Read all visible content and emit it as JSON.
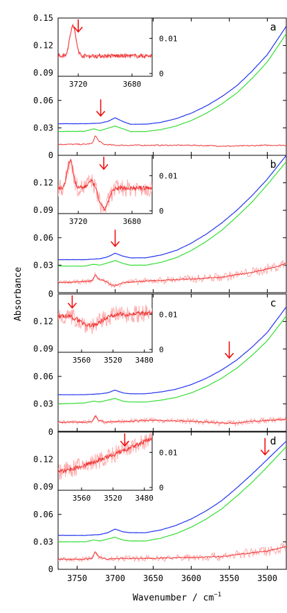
{
  "chart_data": {
    "type": "line",
    "xlabel": "Wavenumber / cm",
    "xlabel_sup": "−1",
    "ylabel": "Absorbance",
    "xlim": [
      3775,
      3475
    ],
    "ylim": [
      0,
      0.15
    ],
    "x_ticks": [
      "3750",
      "3700",
      "3650",
      "3600",
      "3550",
      "3500"
    ],
    "y_ticks": [
      "0",
      "0.03",
      "0.06",
      "0.09",
      "0.12",
      "0.15"
    ],
    "colors": {
      "blue": "#2233ee",
      "green": "#33dd33",
      "diff": "#ee3333",
      "diff_light": "#ffaaaa",
      "arrow": "#ee1111"
    },
    "panels": [
      {
        "label": "a",
        "y_tick_top": "0.15",
        "arrow_x": 3719,
        "inset": {
          "x_ticks": [
            "3720",
            "3680"
          ],
          "y_ticks": [
            "0",
            "0.01"
          ],
          "xlim": [
            3735,
            3665
          ],
          "arrow_x": 3720,
          "shape": "a"
        },
        "series": [
          {
            "color": "blue",
            "values": [
              [
                3775,
                0.0345
              ],
              [
                3740,
                0.0345
              ],
              [
                3720,
                0.0352
              ],
              [
                3710,
                0.037
              ],
              [
                3700,
                0.041
              ],
              [
                3690,
                0.037
              ],
              [
                3680,
                0.034
              ],
              [
                3660,
                0.034
              ],
              [
                3640,
                0.036
              ],
              [
                3620,
                0.04
              ],
              [
                3600,
                0.046
              ],
              [
                3580,
                0.054
              ],
              [
                3560,
                0.064
              ],
              [
                3540,
                0.076
              ],
              [
                3520,
                0.092
              ],
              [
                3500,
                0.11
              ],
              [
                3475,
                0.141
              ]
            ]
          },
          {
            "color": "green",
            "values": [
              [
                3775,
                0.026
              ],
              [
                3740,
                0.0262
              ],
              [
                3728,
                0.029
              ],
              [
                3720,
                0.027
              ],
              [
                3700,
                0.032
              ],
              [
                3690,
                0.029
              ],
              [
                3680,
                0.026
              ],
              [
                3660,
                0.026
              ],
              [
                3640,
                0.028
              ],
              [
                3620,
                0.032
              ],
              [
                3600,
                0.038
              ],
              [
                3580,
                0.046
              ],
              [
                3560,
                0.056
              ],
              [
                3540,
                0.068
              ],
              [
                3520,
                0.084
              ],
              [
                3500,
                0.102
              ],
              [
                3475,
                0.133
              ]
            ]
          },
          {
            "color": "diff",
            "values": [
              [
                3775,
                0.012
              ],
              [
                3740,
                0.012
              ],
              [
                3730,
                0.013
              ],
              [
                3726,
                0.022
              ],
              [
                3722,
                0.016
              ],
              [
                3715,
                0.012
              ],
              [
                3700,
                0.011
              ],
              [
                3650,
                0.011
              ],
              [
                3600,
                0.011
              ],
              [
                3550,
                0.01
              ],
              [
                3500,
                0.011
              ],
              [
                3475,
                0.011
              ]
            ]
          }
        ]
      },
      {
        "label": "b",
        "y_tick_top": "0",
        "arrow_x": 3700,
        "inset": {
          "x_ticks": [
            "3720",
            "3680"
          ],
          "y_ticks": [
            "0",
            "0.01"
          ],
          "xlim": [
            3735,
            3665
          ],
          "arrow_x": 3701,
          "shape": "b"
        },
        "series": [
          {
            "color": "blue",
            "values": [
              [
                3775,
                0.036
              ],
              [
                3740,
                0.036
              ],
              [
                3720,
                0.037
              ],
              [
                3710,
                0.039
              ],
              [
                3700,
                0.043
              ],
              [
                3690,
                0.04
              ],
              [
                3680,
                0.038
              ],
              [
                3660,
                0.038
              ],
              [
                3640,
                0.041
              ],
              [
                3620,
                0.046
              ],
              [
                3600,
                0.054
              ],
              [
                3580,
                0.064
              ],
              [
                3560,
                0.076
              ],
              [
                3540,
                0.09
              ],
              [
                3520,
                0.106
              ],
              [
                3500,
                0.124
              ],
              [
                3475,
                0.15
              ]
            ]
          },
          {
            "color": "green",
            "values": [
              [
                3775,
                0.029
              ],
              [
                3740,
                0.029
              ],
              [
                3728,
                0.031
              ],
              [
                3720,
                0.03
              ],
              [
                3700,
                0.035
              ],
              [
                3690,
                0.032
              ],
              [
                3680,
                0.03
              ],
              [
                3660,
                0.03
              ],
              [
                3640,
                0.033
              ],
              [
                3620,
                0.038
              ],
              [
                3600,
                0.046
              ],
              [
                3580,
                0.056
              ],
              [
                3560,
                0.068
              ],
              [
                3540,
                0.083
              ],
              [
                3520,
                0.099
              ],
              [
                3500,
                0.118
              ],
              [
                3475,
                0.143
              ]
            ]
          },
          {
            "color": "diff",
            "values": [
              [
                3775,
                0.011
              ],
              [
                3740,
                0.012
              ],
              [
                3730,
                0.013
              ],
              [
                3726,
                0.02
              ],
              [
                3722,
                0.015
              ],
              [
                3712,
                0.012
              ],
              [
                3701,
                0.007
              ],
              [
                3690,
                0.011
              ],
              [
                3650,
                0.013
              ],
              [
                3600,
                0.015
              ],
              [
                3560,
                0.017
              ],
              [
                3520,
                0.022
              ],
              [
                3490,
                0.028
              ],
              [
                3475,
                0.032
              ]
            ]
          }
        ]
      },
      {
        "label": "c",
        "y_tick_top": "0",
        "arrow_x": 3550,
        "inset": {
          "x_ticks": [
            "3560",
            "3520",
            "3480"
          ],
          "y_ticks": [
            "0",
            "0.01"
          ],
          "xlim": [
            3590,
            3470
          ],
          "arrow_x": 3572,
          "shape": "c"
        },
        "series": [
          {
            "color": "blue",
            "values": [
              [
                3775,
                0.04
              ],
              [
                3740,
                0.04
              ],
              [
                3720,
                0.041
              ],
              [
                3710,
                0.042
              ],
              [
                3700,
                0.045
              ],
              [
                3690,
                0.042
              ],
              [
                3680,
                0.041
              ],
              [
                3660,
                0.041
              ],
              [
                3640,
                0.043
              ],
              [
                3620,
                0.046
              ],
              [
                3600,
                0.051
              ],
              [
                3580,
                0.058
              ],
              [
                3560,
                0.067
              ],
              [
                3540,
                0.078
              ],
              [
                3520,
                0.092
              ],
              [
                3500,
                0.108
              ],
              [
                3475,
                0.136
              ]
            ]
          },
          {
            "color": "green",
            "values": [
              [
                3775,
                0.03
              ],
              [
                3740,
                0.031
              ],
              [
                3728,
                0.033
              ],
              [
                3720,
                0.032
              ],
              [
                3700,
                0.036
              ],
              [
                3690,
                0.033
              ],
              [
                3680,
                0.032
              ],
              [
                3660,
                0.032
              ],
              [
                3640,
                0.034
              ],
              [
                3620,
                0.037
              ],
              [
                3600,
                0.042
              ],
              [
                3580,
                0.049
              ],
              [
                3560,
                0.058
              ],
              [
                3540,
                0.069
              ],
              [
                3520,
                0.083
              ],
              [
                3500,
                0.099
              ],
              [
                3475,
                0.126
              ]
            ]
          },
          {
            "color": "diff",
            "values": [
              [
                3775,
                0.01
              ],
              [
                3740,
                0.01
              ],
              [
                3730,
                0.011
              ],
              [
                3726,
                0.017
              ],
              [
                3722,
                0.012
              ],
              [
                3712,
                0.01
              ],
              [
                3690,
                0.011
              ],
              [
                3650,
                0.012
              ],
              [
                3600,
                0.011
              ],
              [
                3560,
                0.009
              ],
              [
                3540,
                0.009
              ],
              [
                3520,
                0.011
              ],
              [
                3500,
                0.012
              ],
              [
                3475,
                0.013
              ]
            ]
          }
        ]
      },
      {
        "label": "d",
        "y_tick_top": "0",
        "arrow_x": 3503,
        "inset": {
          "x_ticks": [
            "3560",
            "3520",
            "3480"
          ],
          "y_ticks": [
            "0",
            "0.01"
          ],
          "xlim": [
            3590,
            3470
          ],
          "arrow_x": 3505,
          "shape": "d"
        },
        "series": [
          {
            "color": "blue",
            "values": [
              [
                3775,
                0.037
              ],
              [
                3740,
                0.037
              ],
              [
                3720,
                0.038
              ],
              [
                3710,
                0.04
              ],
              [
                3700,
                0.044
              ],
              [
                3690,
                0.041
              ],
              [
                3680,
                0.04
              ],
              [
                3660,
                0.04
              ],
              [
                3640,
                0.043
              ],
              [
                3620,
                0.048
              ],
              [
                3600,
                0.055
              ],
              [
                3580,
                0.064
              ],
              [
                3560,
                0.075
              ],
              [
                3540,
                0.089
              ],
              [
                3520,
                0.104
              ],
              [
                3500,
                0.12
              ],
              [
                3475,
                0.14
              ]
            ]
          },
          {
            "color": "green",
            "values": [
              [
                3775,
                0.03
              ],
              [
                3740,
                0.03
              ],
              [
                3728,
                0.032
              ],
              [
                3720,
                0.031
              ],
              [
                3700,
                0.035
              ],
              [
                3690,
                0.032
              ],
              [
                3680,
                0.031
              ],
              [
                3660,
                0.031
              ],
              [
                3640,
                0.034
              ],
              [
                3620,
                0.039
              ],
              [
                3600,
                0.046
              ],
              [
                3580,
                0.055
              ],
              [
                3560,
                0.066
              ],
              [
                3540,
                0.08
              ],
              [
                3520,
                0.095
              ],
              [
                3500,
                0.112
              ],
              [
                3475,
                0.134
              ]
            ]
          },
          {
            "color": "diff",
            "values": [
              [
                3775,
                0.011
              ],
              [
                3740,
                0.011
              ],
              [
                3730,
                0.012
              ],
              [
                3726,
                0.02
              ],
              [
                3722,
                0.014
              ],
              [
                3712,
                0.011
              ],
              [
                3690,
                0.012
              ],
              [
                3650,
                0.012
              ],
              [
                3600,
                0.013
              ],
              [
                3560,
                0.014
              ],
              [
                3540,
                0.016
              ],
              [
                3520,
                0.018
              ],
              [
                3500,
                0.02
              ],
              [
                3475,
                0.025
              ]
            ]
          }
        ]
      }
    ]
  }
}
